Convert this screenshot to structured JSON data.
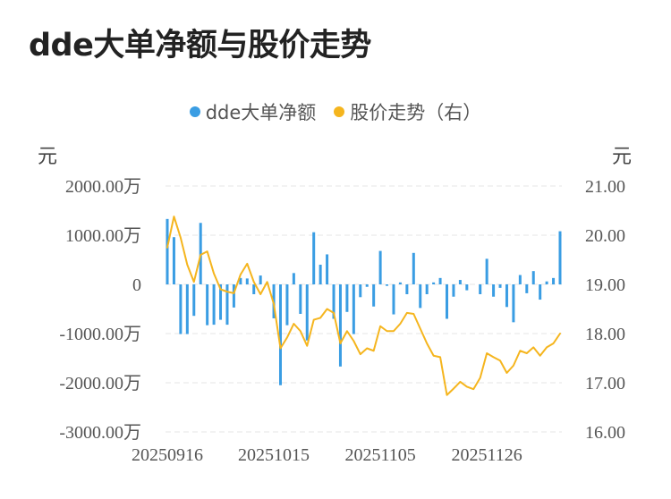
{
  "title": "dde大单净额与股价走势",
  "legend": [
    {
      "label": "dde大单净额",
      "color": "#3a9de3"
    },
    {
      "label": "股价走势（右）",
      "color": "#f5b51e"
    }
  ],
  "units": {
    "left": "元",
    "right": "元"
  },
  "chart_data": {
    "type": "bar+line",
    "title": "dde大单净额与股价走势",
    "left_axis": {
      "min": -3000,
      "max": 2000,
      "ticks": [
        2000,
        1000,
        0,
        -1000,
        -2000,
        -3000
      ],
      "tick_labels": [
        "2000.00万",
        "1000.00万",
        "0",
        "-1000.00万",
        "-2000.00万",
        "-3000.00万"
      ]
    },
    "right_axis": {
      "min": 16,
      "max": 21,
      "ticks": [
        21,
        20,
        19,
        18,
        17,
        16
      ],
      "tick_labels": [
        "21.00",
        "20.00",
        "19.00",
        "18.00",
        "17.00",
        "16.00"
      ]
    },
    "x_tick_labels": [
      {
        "index": 0,
        "label": "20250916"
      },
      {
        "index": 16,
        "label": "20251015"
      },
      {
        "index": 32,
        "label": "20251105"
      },
      {
        "index": 48,
        "label": "20251126"
      }
    ],
    "grid": true,
    "legend_position": "top",
    "series": [
      {
        "name": "dde大单净额",
        "type": "bar",
        "axis": "left",
        "color": "#3a9de3",
        "values": [
          1330,
          960,
          -1010,
          -1010,
          -640,
          1250,
          -830,
          -820,
          -720,
          -820,
          -470,
          130,
          120,
          -200,
          180,
          40,
          -690,
          -2050,
          -830,
          230,
          -600,
          -1140,
          1060,
          400,
          610,
          -700,
          -1670,
          -560,
          -1010,
          -260,
          -50,
          -450,
          680,
          -30,
          -610,
          40,
          -200,
          640,
          -480,
          -200,
          40,
          130,
          -700,
          -250,
          90,
          -120,
          0,
          -200,
          520,
          -250,
          -70,
          -460,
          -770,
          190,
          -180,
          270,
          -310,
          60,
          130,
          1080
        ]
      },
      {
        "name": "股价走势（右）",
        "type": "line",
        "axis": "right",
        "color": "#f5b51e",
        "values": [
          19.75,
          20.38,
          19.95,
          19.4,
          19.05,
          19.6,
          19.67,
          19.22,
          18.9,
          18.85,
          18.82,
          19.2,
          19.42,
          19.05,
          18.8,
          19.05,
          18.6,
          17.7,
          17.92,
          18.2,
          18.05,
          17.75,
          18.28,
          18.32,
          18.5,
          18.42,
          17.8,
          18.05,
          17.85,
          17.58,
          17.7,
          17.65,
          18.15,
          18.05,
          18.05,
          18.2,
          18.42,
          18.4,
          18.1,
          17.8,
          17.55,
          17.52,
          16.75,
          16.88,
          17.02,
          16.92,
          16.87,
          17.1,
          17.6,
          17.52,
          17.45,
          17.2,
          17.35,
          17.65,
          17.6,
          17.72,
          17.55,
          17.72,
          17.8,
          18.0
        ]
      }
    ]
  }
}
